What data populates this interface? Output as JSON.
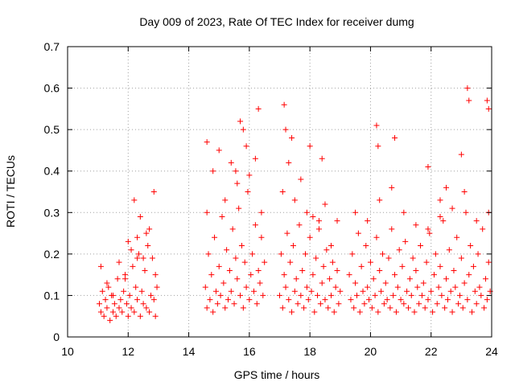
{
  "chart_data": {
    "type": "scatter",
    "title": "Day 009 of 2023, Rate Of TEC Index for receiver dumg",
    "xlabel": "GPS time / hours",
    "ylabel": "ROTI / TECUs",
    "xlim": [
      10,
      24
    ],
    "ylim": [
      0,
      0.7
    ],
    "xticks": [
      "10",
      "12",
      "14",
      "16",
      "18",
      "20",
      "22",
      "24"
    ],
    "yticks": [
      "0",
      "0.1",
      "0.2",
      "0.3",
      "0.4",
      "0.5",
      "0.6",
      "0.7"
    ],
    "grid": true,
    "marker": "plus",
    "color": "#ff0000",
    "series": [
      {
        "x": [
          11.05,
          11.1,
          11.15,
          11.2,
          11.25,
          11.3,
          11.35,
          11.4,
          11.45,
          11.5,
          11.55,
          11.6,
          11.65,
          11.7,
          11.75,
          11.8,
          11.85,
          11.9,
          11.95,
          12.0,
          12.05,
          12.1,
          12.15,
          12.2,
          12.25,
          12.3,
          12.35,
          12.4,
          12.45,
          12.5,
          12.55,
          12.6,
          12.65,
          12.7,
          12.75,
          12.8,
          12.85,
          12.9,
          12.95,
          11.1,
          11.3,
          11.5,
          11.7,
          11.9,
          12.1,
          12.3,
          12.5,
          12.7,
          12.9,
          12.2,
          12.4,
          12.6,
          12.85,
          12.0,
          12.3,
          14.55,
          14.6,
          14.65,
          14.7,
          14.75,
          14.8,
          14.85,
          14.9,
          14.95,
          15.0,
          15.05,
          15.1,
          15.15,
          15.2,
          15.25,
          15.3,
          15.35,
          15.4,
          15.45,
          15.5,
          15.55,
          15.6,
          15.65,
          15.7,
          15.75,
          15.8,
          15.85,
          15.9,
          15.95,
          16.0,
          16.05,
          16.1,
          16.15,
          16.2,
          16.25,
          16.3,
          16.35,
          16.4,
          16.45,
          16.5,
          14.6,
          14.8,
          15.0,
          15.2,
          15.4,
          15.6,
          15.8,
          16.0,
          16.2,
          16.4,
          15.7,
          15.9,
          16.3,
          14.6,
          15.55,
          17.0,
          17.05,
          17.1,
          17.15,
          17.2,
          17.25,
          17.3,
          17.35,
          17.4,
          17.45,
          17.5,
          17.55,
          17.6,
          17.65,
          17.7,
          17.75,
          17.8,
          17.85,
          17.9,
          17.95,
          18.0,
          18.05,
          18.1,
          18.15,
          18.2,
          18.25,
          18.3,
          18.35,
          18.4,
          18.45,
          18.5,
          18.55,
          18.6,
          18.65,
          18.7,
          18.75,
          18.8,
          18.85,
          18.9,
          18.95,
          19.0,
          17.1,
          17.3,
          17.5,
          17.7,
          17.9,
          18.1,
          18.3,
          18.5,
          18.7,
          18.9,
          17.2,
          17.15,
          17.4,
          18.4,
          18.0,
          19.3,
          19.35,
          19.4,
          19.45,
          19.5,
          19.55,
          19.6,
          19.65,
          19.7,
          19.75,
          19.8,
          19.85,
          19.9,
          19.95,
          20.0,
          20.05,
          20.1,
          20.15,
          20.2,
          20.25,
          20.3,
          20.35,
          20.4,
          20.45,
          20.5,
          20.55,
          20.6,
          20.65,
          20.7,
          20.75,
          20.8,
          20.85,
          20.9,
          20.95,
          21.0,
          21.05,
          21.1,
          21.15,
          21.2,
          21.25,
          21.3,
          21.35,
          21.4,
          21.45,
          21.5,
          21.55,
          21.6,
          21.65,
          21.7,
          21.75,
          21.8,
          21.85,
          21.9,
          21.95,
          22.0,
          22.05,
          22.1,
          22.15,
          22.2,
          22.25,
          22.3,
          22.35,
          22.4,
          22.45,
          22.5,
          22.55,
          22.6,
          22.65,
          22.7,
          22.75,
          22.8,
          22.85,
          22.9,
          22.95,
          23.0,
          23.05,
          23.1,
          23.15,
          23.2,
          23.25,
          23.3,
          23.35,
          23.4,
          23.45,
          23.5,
          23.55,
          23.6,
          23.65,
          23.7,
          23.75,
          23.8,
          23.85,
          23.9,
          23.95,
          19.5,
          19.9,
          20.3,
          20.7,
          21.1,
          21.5,
          21.9,
          22.3,
          22.7,
          23.1,
          23.5,
          23.9,
          20.2,
          20.8,
          21.9,
          22.5,
          23.2,
          23.25,
          23.85,
          23.9,
          20.25,
          22.3,
          23.0
        ],
        "y": [
          0.08,
          0.06,
          0.11,
          0.05,
          0.09,
          0.07,
          0.12,
          0.04,
          0.1,
          0.06,
          0.08,
          0.05,
          0.14,
          0.07,
          0.09,
          0.06,
          0.11,
          0.15,
          0.08,
          0.05,
          0.1,
          0.07,
          0.17,
          0.06,
          0.12,
          0.09,
          0.2,
          0.05,
          0.11,
          0.08,
          0.16,
          0.07,
          0.22,
          0.06,
          0.1,
          0.19,
          0.09,
          0.05,
          0.12,
          0.17,
          0.13,
          0.1,
          0.18,
          0.14,
          0.21,
          0.24,
          0.19,
          0.26,
          0.15,
          0.33,
          0.29,
          0.25,
          0.35,
          0.23,
          0.19,
          0.12,
          0.07,
          0.2,
          0.09,
          0.15,
          0.06,
          0.24,
          0.11,
          0.08,
          0.17,
          0.1,
          0.29,
          0.13,
          0.07,
          0.21,
          0.09,
          0.16,
          0.11,
          0.26,
          0.08,
          0.19,
          0.14,
          0.31,
          0.1,
          0.22,
          0.07,
          0.18,
          0.12,
          0.35,
          0.09,
          0.15,
          0.2,
          0.11,
          0.27,
          0.08,
          0.16,
          0.13,
          0.24,
          0.1,
          0.18,
          0.3,
          0.4,
          0.45,
          0.33,
          0.42,
          0.37,
          0.5,
          0.39,
          0.43,
          0.3,
          0.52,
          0.46,
          0.55,
          0.47,
          0.4,
          0.1,
          0.2,
          0.07,
          0.15,
          0.12,
          0.25,
          0.09,
          0.18,
          0.06,
          0.22,
          0.11,
          0.14,
          0.08,
          0.27,
          0.1,
          0.16,
          0.07,
          0.2,
          0.12,
          0.09,
          0.24,
          0.11,
          0.15,
          0.06,
          0.19,
          0.1,
          0.28,
          0.08,
          0.13,
          0.17,
          0.09,
          0.21,
          0.07,
          0.14,
          0.1,
          0.18,
          0.06,
          0.12,
          0.16,
          0.08,
          0.11,
          0.35,
          0.42,
          0.33,
          0.38,
          0.3,
          0.29,
          0.26,
          0.32,
          0.22,
          0.28,
          0.5,
          0.56,
          0.48,
          0.43,
          0.46,
          0.15,
          0.09,
          0.2,
          0.07,
          0.13,
          0.1,
          0.25,
          0.06,
          0.17,
          0.11,
          0.08,
          0.22,
          0.12,
          0.09,
          0.18,
          0.07,
          0.14,
          0.1,
          0.24,
          0.06,
          0.16,
          0.11,
          0.2,
          0.08,
          0.13,
          0.09,
          0.19,
          0.07,
          0.26,
          0.1,
          0.15,
          0.06,
          0.12,
          0.21,
          0.09,
          0.17,
          0.08,
          0.23,
          0.11,
          0.07,
          0.14,
          0.1,
          0.19,
          0.06,
          0.16,
          0.12,
          0.08,
          0.22,
          0.1,
          0.13,
          0.07,
          0.18,
          0.09,
          0.25,
          0.11,
          0.06,
          0.15,
          0.2,
          0.08,
          0.12,
          0.17,
          0.1,
          0.28,
          0.07,
          0.14,
          0.09,
          0.21,
          0.11,
          0.06,
          0.16,
          0.12,
          0.24,
          0.08,
          0.1,
          0.19,
          0.07,
          0.13,
          0.3,
          0.09,
          0.15,
          0.22,
          0.06,
          0.17,
          0.11,
          0.08,
          0.2,
          0.12,
          0.1,
          0.26,
          0.07,
          0.14,
          0.09,
          0.18,
          0.11,
          0.3,
          0.28,
          0.33,
          0.36,
          0.3,
          0.27,
          0.26,
          0.29,
          0.31,
          0.35,
          0.28,
          0.3,
          0.51,
          0.48,
          0.41,
          0.36,
          0.6,
          0.57,
          0.57,
          0.55,
          0.46,
          0.33,
          0.44
        ]
      }
    ]
  }
}
